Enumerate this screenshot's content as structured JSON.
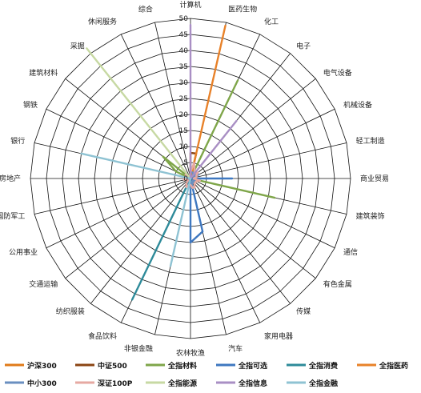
{
  "chart_data": {
    "type": "radar",
    "title": "",
    "r_range": [
      0,
      50
    ],
    "r_ticks": [
      0,
      5,
      10,
      15,
      20,
      25,
      30,
      35,
      40,
      45,
      50
    ],
    "grid": true,
    "legend_position": "bottom",
    "categories": [
      "计算机",
      "医药生物",
      "化工",
      "电子",
      "电气设备",
      "机械设备",
      "轻工制造",
      "商业贸易",
      "建筑装饰",
      "通信",
      "有色金属",
      "传媒",
      "家用电器",
      "汽车",
      "农林牧渔",
      "非银金融",
      "食品饮料",
      "纺织服装",
      "交通运输",
      "公用事业",
      "国防军工",
      "房地产",
      "银行",
      "钢铁",
      "建筑材料",
      "采掘",
      "休闲服务",
      "综合"
    ],
    "series": [
      {
        "name": "沪深300",
        "color": "#e07b1a",
        "values": [
          0,
          0,
          0,
          0,
          0,
          0,
          0,
          0,
          0,
          0,
          0,
          0,
          0,
          0,
          0,
          0,
          1,
          0,
          0,
          0,
          0,
          1,
          0,
          0,
          0,
          0,
          0,
          0
        ]
      },
      {
        "name": "中证500",
        "color": "#8b4513",
        "values": [
          8,
          8,
          0,
          0,
          0,
          0,
          0,
          0,
          0,
          0,
          0,
          0,
          0,
          0,
          0,
          0,
          0,
          0,
          0,
          0,
          2,
          0,
          0,
          0,
          0,
          0,
          0,
          0
        ]
      },
      {
        "name": "全指材料",
        "color": "#7fa64a",
        "values": [
          0,
          0,
          34,
          0,
          0,
          0,
          0,
          0,
          27,
          0,
          0,
          0,
          0,
          0,
          0,
          0,
          0,
          0,
          0,
          0,
          0,
          0,
          0,
          5,
          11,
          0,
          0,
          0
        ]
      },
      {
        "name": "全指可选",
        "color": "#3f78c0",
        "values": [
          0,
          0,
          0,
          0,
          0,
          0,
          0,
          13,
          0,
          0,
          0,
          0,
          0,
          17,
          20,
          0,
          0,
          0,
          0,
          0,
          0,
          0,
          0,
          0,
          0,
          0,
          0,
          0
        ]
      },
      {
        "name": "全指消费",
        "color": "#2e8b9a",
        "values": [
          0,
          0,
          0,
          0,
          0,
          0,
          0,
          0,
          0,
          0,
          0,
          0,
          0,
          0,
          0,
          0,
          42,
          0,
          0,
          0,
          0,
          0,
          0,
          0,
          0,
          0,
          0,
          0
        ]
      },
      {
        "name": "全指医药",
        "color": "#e8822a",
        "values": [
          0,
          49,
          0,
          0,
          0,
          0,
          0,
          0,
          0,
          0,
          0,
          0,
          0,
          0,
          0,
          0,
          0,
          0,
          0,
          0,
          0,
          0,
          0,
          0,
          0,
          0,
          0,
          0
        ]
      },
      {
        "name": "中小300",
        "color": "#6a8fc0",
        "values": [
          2,
          2,
          2,
          1,
          2,
          3,
          1,
          1,
          2,
          1,
          1,
          2,
          1,
          3,
          3,
          1,
          1,
          1,
          0,
          1,
          2,
          1,
          1,
          1,
          1,
          0,
          1,
          1
        ]
      },
      {
        "name": "深证100P",
        "color": "#e6a9a2",
        "values": [
          2,
          5,
          3,
          2,
          3,
          2,
          2,
          1,
          3,
          2,
          2,
          2,
          3,
          3,
          2,
          2,
          3,
          2,
          1,
          1,
          2,
          2,
          1,
          1,
          2,
          1,
          1,
          1
        ]
      },
      {
        "name": "全指能源",
        "color": "#c7d9a3",
        "values": [
          0,
          0,
          0,
          0,
          0,
          0,
          0,
          0,
          0,
          0,
          0,
          0,
          0,
          0,
          0,
          0,
          0,
          0,
          0,
          0,
          0,
          0,
          0,
          0,
          0,
          52,
          0,
          0
        ]
      },
      {
        "name": "全指信息",
        "color": "#a98fc4",
        "values": [
          48,
          0,
          0,
          23,
          0,
          0,
          0,
          0,
          0,
          0,
          0,
          0,
          0,
          0,
          0,
          0,
          0,
          0,
          0,
          0,
          0,
          0,
          0,
          0,
          0,
          0,
          0,
          0
        ]
      },
      {
        "name": "全指金融",
        "color": "#8fc3d3",
        "values": [
          0,
          0,
          0,
          0,
          0,
          0,
          0,
          0,
          0,
          0,
          0,
          0,
          0,
          0,
          0,
          28,
          0,
          0,
          0,
          0,
          0,
          0,
          35,
          0,
          0,
          0,
          0,
          0
        ]
      }
    ]
  },
  "legend": {
    "items": [
      {
        "name": "沪深300",
        "color": "#e07b1a"
      },
      {
        "name": "中证500",
        "color": "#8b4513"
      },
      {
        "name": "全指材料",
        "color": "#7fa64a"
      },
      {
        "name": "全指可选",
        "color": "#3f78c0"
      },
      {
        "name": "全指消费",
        "color": "#2e8b9a"
      },
      {
        "name": "全指医药",
        "color": "#e8822a"
      },
      {
        "name": "中小300",
        "color": "#6a8fc0"
      },
      {
        "name": "深证100P",
        "color": "#e6a9a2"
      },
      {
        "name": "全指能源",
        "color": "#c7d9a3"
      },
      {
        "name": "全指信息",
        "color": "#a98fc4"
      },
      {
        "name": "全指金融",
        "color": "#8fc3d3"
      }
    ]
  }
}
